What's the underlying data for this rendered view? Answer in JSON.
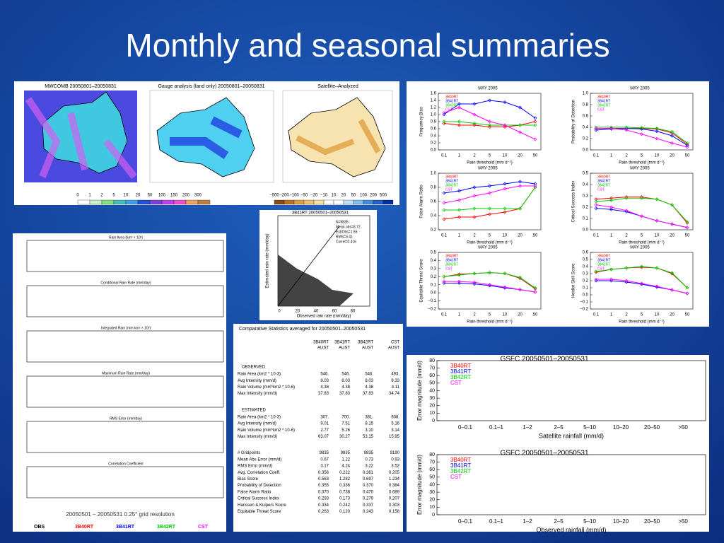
{
  "title": "Monthly and seasonal summaries",
  "maps": {
    "panels": [
      {
        "title": "MWCOMB 20050801–20050831"
      },
      {
        "title": "Gauge analysis (land only) 20050801–20050831"
      },
      {
        "title": "Satellite–Analyzed"
      }
    ],
    "scale1": [
      "0",
      "1",
      "2",
      "5",
      "10",
      "20",
      "50",
      "100",
      "150",
      "200",
      "300"
    ],
    "scale2": [
      "−500",
      "−200",
      "−100",
      "−50",
      "−20",
      "−10",
      "10",
      "20",
      "50",
      "100",
      "200",
      "500"
    ]
  },
  "scatter": {
    "title": "3B41RT 20050501–20050531",
    "xlabel": "Observed rain rate (mm/day)",
    "ylabel": "Estimated rain rate (mm/day)",
    "xticks": [
      "0",
      "20",
      "40",
      "60",
      "80"
    ],
    "stats": [
      "N=9835",
      "Mean obs=8.72",
      "Est/Obs=1.55",
      "RMS=3.41",
      "Correl=0.416"
    ]
  },
  "timeseries": {
    "panels": [
      "Rain Area (km² × 10³)",
      "Conditional Rain Rate (mm/day)",
      "Integrated Rain (mm·km² × 10³)",
      "Maximum Rain Rate (mm/day)",
      "RMS Error (mm/day)",
      "Correlation Coefficient"
    ],
    "caption": "20050501 – 20050531   0.25° grid resolution",
    "legend": [
      {
        "name": "OBS",
        "color": "#000000"
      },
      {
        "name": "3B40RT",
        "color": "#ff0000"
      },
      {
        "name": "3B41RT",
        "color": "#0000ff"
      },
      {
        "name": "3B42RT",
        "color": "#00cc00"
      },
      {
        "name": "CST",
        "color": "#ff00ff"
      }
    ]
  },
  "table": {
    "title": "Comparative Statistics averaged for 20050501–20050531",
    "columns": [
      [
        "3B40RT",
        "AUST"
      ],
      [
        "3B41RT",
        "AUST"
      ],
      [
        "3B42RT",
        "AUST"
      ],
      [
        "CST",
        "AUST"
      ]
    ],
    "sections": [
      {
        "heading": "OBSERVED",
        "rows": [
          [
            "Rain Area (km2 * 10-3)",
            "546.",
            "546.",
            "546.",
            "493."
          ],
          [
            "Avg Intensity (mm/d)",
            "8.03",
            "8.03",
            "8.03",
            "8.33"
          ],
          [
            "Rain Volume (mm*km2 * 10-6)",
            "4.38",
            "4.38",
            "4.38",
            "4.11"
          ],
          [
            "Max Intensity (mm/d)",
            "37.83",
            "37.83",
            "37.83",
            "34.74"
          ]
        ]
      },
      {
        "heading": "ESTIMATED",
        "rows": [
          [
            "Rain Area (km2 * 10-3)",
            "307.",
            "700.",
            "381.",
            "608."
          ],
          [
            "Avg Intensity (mm/d)",
            "9.01",
            "7.51",
            "8.15",
            "5.16"
          ],
          [
            "Rain Volume (mm*km2 * 10-6)",
            "2.77",
            "5.26",
            "3.10",
            "3.14"
          ],
          [
            "Max Intensity (mm/d)",
            "63.07",
            "30.27",
            "53.15",
            "15.95"
          ]
        ]
      },
      {
        "rows": [
          [
            "# Gridpoints",
            "9835",
            "9835",
            "9835",
            "9190"
          ],
          [
            "Mean Abs Error (mm/d)",
            "0.67",
            "1.22",
            "0.73",
            "0.93"
          ],
          [
            "RMS Error (mm/d)",
            "3.17",
            "4.24",
            "3.22",
            "3.52"
          ],
          [
            "Avg. Correlation Coeff.",
            "0.356",
            "0.222",
            "0.361",
            "0.205"
          ],
          [
            "Bias Score",
            "0.563",
            "1.282",
            "0.697",
            "1.234"
          ],
          [
            "Probability of Detection",
            "0.355",
            "0.336",
            "0.370",
            "0.384"
          ],
          [
            "False Alarm Ratio",
            "0.370",
            "0.738",
            "0.470",
            "0.689"
          ],
          [
            "Critical Success Index",
            "0.293",
            "0.173",
            "0.279",
            "0.207"
          ],
          [
            "Hanssen & Kuipers Score",
            "0.334",
            "0.242",
            "0.337",
            "0.303"
          ],
          [
            "Equitable Threat Score",
            "0.263",
            "0.120",
            "0.243",
            "0.158"
          ]
        ]
      }
    ]
  },
  "scores": {
    "type": "line",
    "title": "MAY 2005",
    "xlabel": "Rain threshold  (mm d⁻¹)",
    "categories": [
      "0.1",
      "1",
      "2",
      "5",
      "10",
      "20",
      "50"
    ],
    "panels": [
      {
        "ylabel": "Frequency Bias",
        "ylim": [
          0,
          1.6
        ],
        "yticks": [
          {
            "value": 0,
            "label": "0.0"
          },
          {
            "value": 0.2,
            "label": "0.2"
          },
          {
            "value": 0.4,
            "label": "0.4"
          },
          {
            "value": 0.6,
            "label": "0.6"
          },
          {
            "value": 0.8,
            "label": "0.8"
          },
          {
            "value": 1,
            "label": "1.0"
          },
          {
            "value": 1.2,
            "label": "1.2"
          },
          {
            "value": 1.4,
            "label": "1.4"
          },
          {
            "value": 1.6,
            "label": "1.6"
          }
        ],
        "series": [
          {
            "name": "3B40RT",
            "color": "#ff0000",
            "values": [
              0.75,
              0.7,
              0.7,
              0.65,
              0.65,
              0.7,
              0.8
            ]
          },
          {
            "name": "3B41RT",
            "color": "#0000ff",
            "values": [
              1.0,
              1.3,
              1.3,
              1.4,
              1.35,
              1.2,
              0.9
            ]
          },
          {
            "name": "3B42RT",
            "color": "#00cc00",
            "values": [
              0.8,
              0.8,
              0.75,
              0.7,
              0.7,
              0.7,
              0.7
            ]
          },
          {
            "name": "CST",
            "color": "#ff00ff",
            "values": [
              1.05,
              1.2,
              1.0,
              0.8,
              0.7,
              0.5,
              0.3
            ]
          }
        ]
      },
      {
        "ylabel": "Probability of Detection",
        "ylim": [
          0,
          1
        ],
        "yticks": [
          {
            "value": 0,
            "label": "0.0"
          },
          {
            "value": 0.2,
            "label": "0.2"
          },
          {
            "value": 0.4,
            "label": "0.4"
          },
          {
            "value": 0.6,
            "label": "0.6"
          },
          {
            "value": 0.8,
            "label": "0.8"
          },
          {
            "value": 1,
            "label": "1.0"
          }
        ],
        "series": [
          {
            "name": "3B40RT",
            "color": "#ff0000",
            "values": [
              0.38,
              0.38,
              0.38,
              0.38,
              0.37,
              0.3,
              0.1
            ]
          },
          {
            "name": "3B41RT",
            "color": "#0000ff",
            "values": [
              0.35,
              0.37,
              0.38,
              0.37,
              0.33,
              0.25,
              0.08
            ]
          },
          {
            "name": "3B42RT",
            "color": "#00cc00",
            "values": [
              0.4,
              0.4,
              0.4,
              0.39,
              0.38,
              0.32,
              0.12
            ]
          },
          {
            "name": "CST",
            "color": "#ff00ff",
            "values": [
              0.38,
              0.38,
              0.35,
              0.28,
              0.2,
              0.12,
              0.05
            ]
          }
        ]
      },
      {
        "ylabel": "False Alarm Ratio",
        "ylim": [
          0.2,
          1
        ],
        "yticks": [
          {
            "value": 0.2,
            "label": "0.2"
          },
          {
            "value": 0.4,
            "label": "0.4"
          },
          {
            "value": 0.6,
            "label": "0.6"
          },
          {
            "value": 0.8,
            "label": "0.8"
          },
          {
            "value": 1,
            "label": "1.0"
          }
        ],
        "series": [
          {
            "name": "3B40RT",
            "color": "#ff0000",
            "values": [
              0.35,
              0.38,
              0.38,
              0.42,
              0.45,
              0.5,
              0.8
            ]
          },
          {
            "name": "3B41RT",
            "color": "#0000ff",
            "values": [
              0.72,
              0.75,
              0.8,
              0.82,
              0.85,
              0.88,
              0.85
            ]
          },
          {
            "name": "3B42RT",
            "color": "#00cc00",
            "values": [
              0.48,
              0.48,
              0.5,
              0.5,
              0.5,
              0.5,
              0.8
            ]
          },
          {
            "name": "CST",
            "color": "#ff00ff",
            "values": [
              0.58,
              0.62,
              0.68,
              0.72,
              0.78,
              0.82,
              0.82
            ]
          }
        ]
      },
      {
        "ylabel": "Critical Success Index",
        "ylim": [
          0,
          0.5
        ],
        "yticks": [
          {
            "value": 0,
            "label": "0.0"
          },
          {
            "value": 0.1,
            "label": "0.1"
          },
          {
            "value": 0.2,
            "label": "0.2"
          },
          {
            "value": 0.3,
            "label": "0.3"
          },
          {
            "value": 0.4,
            "label": "0.4"
          },
          {
            "value": 0.5,
            "label": "0.5"
          }
        ],
        "series": [
          {
            "name": "3B40RT",
            "color": "#ff0000",
            "values": [
              0.27,
              0.28,
              0.29,
              0.29,
              0.27,
              0.22,
              0.06
            ]
          },
          {
            "name": "3B41RT",
            "color": "#0000ff",
            "values": [
              0.19,
              0.18,
              0.16,
              0.12,
              0.08,
              0.05,
              0.02
            ]
          },
          {
            "name": "3B42RT",
            "color": "#00cc00",
            "values": [
              0.25,
              0.26,
              0.28,
              0.28,
              0.27,
              0.22,
              0.07
            ]
          },
          {
            "name": "CST",
            "color": "#ff00ff",
            "values": [
              0.22,
              0.2,
              0.17,
              0.12,
              0.08,
              0.05,
              0.02
            ]
          }
        ]
      },
      {
        "ylabel": "Equitable Threat Score",
        "ylim": [
          -0.2,
          0.5
        ],
        "yticks": [
          {
            "value": -0.2,
            "label": "−0.2"
          },
          {
            "value": -0.1,
            "label": "−0.1"
          },
          {
            "value": 0,
            "label": "0.0"
          },
          {
            "value": 0.1,
            "label": "0.1"
          },
          {
            "value": 0.2,
            "label": "0.2"
          },
          {
            "value": 0.3,
            "label": "0.3"
          },
          {
            "value": 0.4,
            "label": "0.4"
          },
          {
            "value": 0.5,
            "label": "0.5"
          }
        ],
        "series": [
          {
            "name": "3B40RT",
            "color": "#ff0000",
            "values": [
              0.2,
              0.23,
              0.24,
              0.25,
              0.24,
              0.18,
              0.05
            ]
          },
          {
            "name": "3B41RT",
            "color": "#0000ff",
            "values": [
              0.12,
              0.12,
              0.11,
              0.09,
              0.06,
              0.04,
              0.01
            ]
          },
          {
            "name": "3B42RT",
            "color": "#00cc00",
            "values": [
              0.2,
              0.22,
              0.24,
              0.25,
              0.24,
              0.19,
              0.06
            ]
          },
          {
            "name": "CST",
            "color": "#ff00ff",
            "values": [
              0.14,
              0.14,
              0.13,
              0.1,
              0.07,
              0.04,
              0.01
            ]
          }
        ]
      },
      {
        "ylabel": "Heidke Skill Score",
        "ylim": [
          -0.2,
          0.6
        ],
        "yticks": [
          {
            "value": -0.2,
            "label": "−0.2"
          },
          {
            "value": -0.1,
            "label": "−0.1"
          },
          {
            "value": 0,
            "label": "0.0"
          },
          {
            "value": 0.1,
            "label": "0.1"
          },
          {
            "value": 0.2,
            "label": "0.2"
          },
          {
            "value": 0.3,
            "label": "0.3"
          },
          {
            "value": 0.4,
            "label": "0.4"
          },
          {
            "value": 0.5,
            "label": "0.5"
          },
          {
            "value": 0.6,
            "label": "0.6"
          }
        ],
        "series": [
          {
            "name": "3B40RT",
            "color": "#ff0000",
            "values": [
              0.32,
              0.36,
              0.38,
              0.39,
              0.38,
              0.3,
              0.1
            ]
          },
          {
            "name": "3B41RT",
            "color": "#0000ff",
            "values": [
              0.2,
              0.2,
              0.18,
              0.15,
              0.11,
              0.07,
              0.02
            ]
          },
          {
            "name": "3B42RT",
            "color": "#00cc00",
            "values": [
              0.33,
              0.36,
              0.38,
              0.4,
              0.38,
              0.31,
              0.1
            ]
          },
          {
            "name": "CST",
            "color": "#ff00ff",
            "values": [
              0.22,
              0.22,
              0.2,
              0.16,
              0.12,
              0.07,
              0.02
            ]
          }
        ]
      }
    ]
  },
  "boxes": {
    "categories": [
      "0–0.1",
      "0.1–1",
      "1–2",
      "2–5",
      "5–10",
      "10–20",
      "20–50",
      ">50"
    ],
    "ylabel": "Error magnitude (mm/d)",
    "yticks": [
      0,
      10,
      20,
      30,
      40,
      50,
      60,
      70,
      80
    ],
    "legend": [
      {
        "name": "3B40RT",
        "color": "#ff0000"
      },
      {
        "name": "3B41RT",
        "color": "#0000ff"
      },
      {
        "name": "3B42RT",
        "color": "#00cc00"
      },
      {
        "name": "CST",
        "color": "#ff00ff"
      }
    ],
    "panels": [
      {
        "title": "GSFC 20050501–20050531",
        "xlabel": "Satellite rainfall (mm/d)"
      },
      {
        "title": "GSFC 20050501–20050531",
        "xlabel": "Observed rainfall (mm/d)"
      }
    ]
  }
}
